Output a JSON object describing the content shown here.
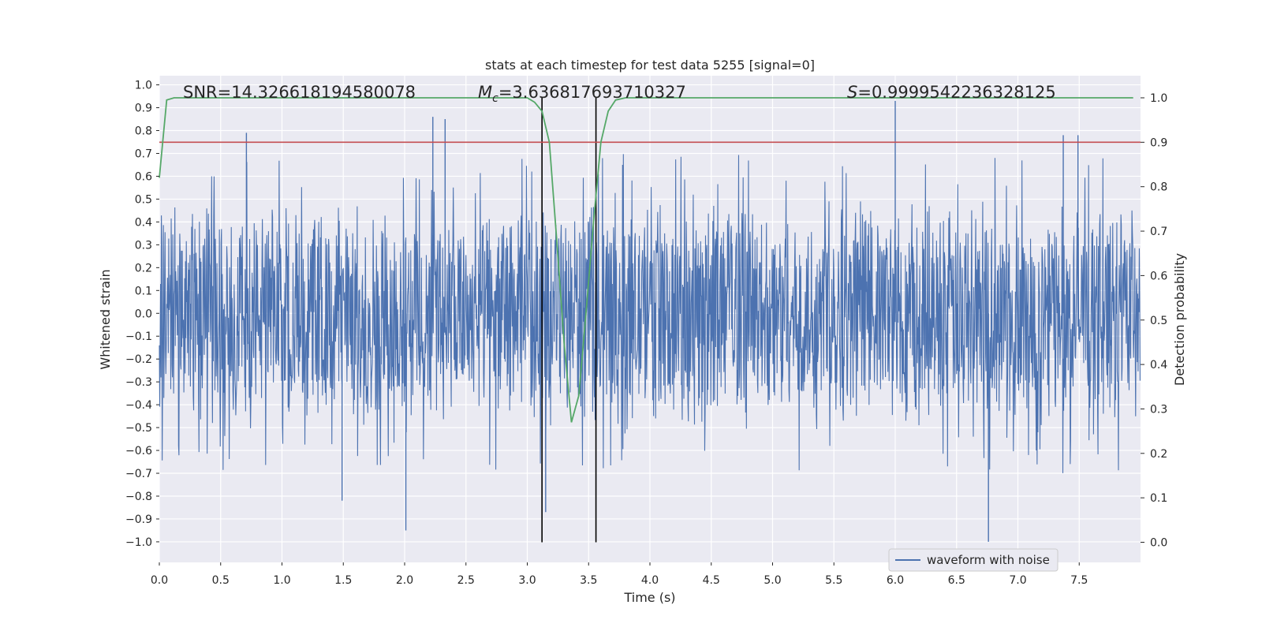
{
  "chart_data": {
    "type": "line",
    "title": "stats at each timestep for test data 5255 [signal=0]",
    "xlabel": "Time (s)",
    "ylabel_left": "Whitened strain",
    "ylabel_right": "Detection probability",
    "xlim": [
      0.0,
      8.0
    ],
    "ylim_left": [
      -1.09,
      1.04
    ],
    "ylim_right": [
      0.0,
      1.0
    ],
    "x_ticks": [
      "0.0",
      "0.5",
      "1.0",
      "1.5",
      "2.0",
      "2.5",
      "3.0",
      "3.5",
      "4.0",
      "4.5",
      "5.0",
      "5.5",
      "6.0",
      "6.5",
      "7.0",
      "7.5"
    ],
    "y_ticks_left": [
      "1.0",
      "0.9",
      "0.8",
      "0.7",
      "0.6",
      "0.5",
      "0.4",
      "0.3",
      "0.2",
      "0.1",
      "0.0",
      "−0.1",
      "−0.2",
      "−0.3",
      "−0.4",
      "−0.5",
      "−0.6",
      "−0.7",
      "−0.8",
      "−0.9",
      "−1.0"
    ],
    "y_ticks_right": [
      "1.0",
      "0.9",
      "0.8",
      "0.7",
      "0.6",
      "0.5",
      "0.4",
      "0.3",
      "0.2",
      "0.1",
      "0.0"
    ],
    "grid": true,
    "legend_position": "bottom-right",
    "annotations": {
      "snr_text": "SNR=14.326618194580078",
      "mc_symbol": "M",
      "mc_sub": "c",
      "mc_text": "=3.636817693710327",
      "s_symbol": "S",
      "s_text": "=0.9999542236328125"
    },
    "series": [
      {
        "name": "waveform with noise",
        "axis": "left",
        "color": "#4c72b0",
        "note_peaks": [
          [
            0.71,
            0.79
          ],
          [
            1.49,
            -0.82
          ],
          [
            2.01,
            -0.95
          ],
          [
            2.23,
            0.86
          ],
          [
            2.33,
            0.85
          ],
          [
            3.15,
            -0.87
          ],
          [
            6.0,
            0.93
          ],
          [
            6.76,
            -1.0
          ],
          [
            7.37,
            0.78
          ],
          [
            7.49,
            0.78
          ]
        ]
      },
      {
        "axis": "right",
        "color": "#55a868",
        "x": [
          0.0,
          0.06,
          0.12,
          0.5,
          1.0,
          1.5,
          2.0,
          2.5,
          2.9,
          3.0,
          3.06,
          3.12,
          3.18,
          3.24,
          3.3,
          3.36,
          3.42,
          3.48,
          3.54,
          3.6,
          3.66,
          3.72,
          3.8,
          4.0,
          5.0,
          6.0,
          7.0,
          7.94
        ],
        "y": [
          0.82,
          0.995,
          1.0,
          1.0,
          1.0,
          1.0,
          1.0,
          1.0,
          1.0,
          1.0,
          0.99,
          0.97,
          0.9,
          0.68,
          0.45,
          0.27,
          0.33,
          0.52,
          0.72,
          0.9,
          0.97,
          0.995,
          1.0,
          1.0,
          1.0,
          1.0,
          1.0,
          1.0
        ]
      }
    ],
    "threshold_line": {
      "axis": "right",
      "value": 0.9,
      "color": "#c44e52"
    },
    "vertical_lines": {
      "x": [
        3.12,
        3.56
      ],
      "color": "#000000"
    }
  }
}
